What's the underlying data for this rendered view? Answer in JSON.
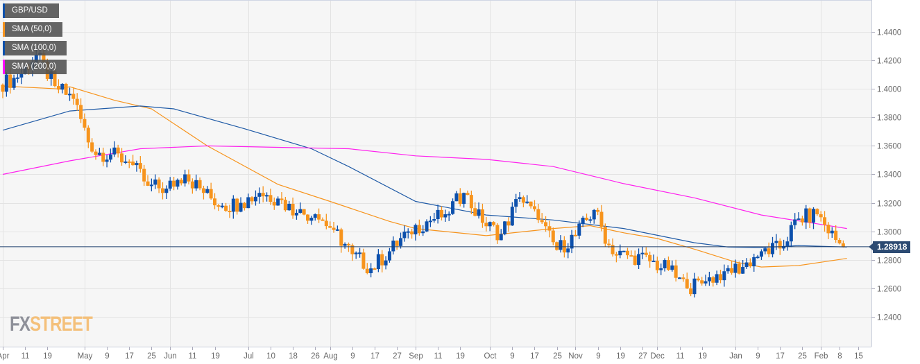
{
  "chart_data": {
    "type": "candlestick",
    "symbol": "GBP/USD",
    "legend": [
      "GBP/USD",
      "SMA (50,0)",
      "SMA (100,0)",
      "SMA (200,0)"
    ],
    "legend_placement": "top-left",
    "last_price": "1.28918",
    "ylim": [
      1.22,
      1.46
    ],
    "y_ticks": [
      "1.4400",
      "1.4200",
      "1.4000",
      "1.3800",
      "1.3600",
      "1.3400",
      "1.3200",
      "1.3000",
      "1.2800",
      "1.2600",
      "1.2400"
    ],
    "x_ticks": [
      {
        "label": "Apr",
        "day": 0
      },
      {
        "label": "11",
        "day": 6
      },
      {
        "label": "19",
        "day": 12
      },
      {
        "label": "May",
        "day": 22
      },
      {
        "label": "9",
        "day": 28
      },
      {
        "label": "17",
        "day": 34
      },
      {
        "label": "25",
        "day": 40
      },
      {
        "label": "Jun",
        "day": 45
      },
      {
        "label": "11",
        "day": 51
      },
      {
        "label": "19",
        "day": 57
      },
      {
        "label": "Jul",
        "day": 66
      },
      {
        "label": "10",
        "day": 72
      },
      {
        "label": "18",
        "day": 78
      },
      {
        "label": "26",
        "day": 84
      },
      {
        "label": "Aug",
        "day": 88
      },
      {
        "label": "9",
        "day": 94
      },
      {
        "label": "17",
        "day": 100
      },
      {
        "label": "27",
        "day": 106
      },
      {
        "label": "Sep",
        "day": 111
      },
      {
        "label": "11",
        "day": 117
      },
      {
        "label": "19",
        "day": 123
      },
      {
        "label": "Oct",
        "day": 131
      },
      {
        "label": "9",
        "day": 137
      },
      {
        "label": "17",
        "day": 143
      },
      {
        "label": "25",
        "day": 149
      },
      {
        "label": "Nov",
        "day": 154
      },
      {
        "label": "9",
        "day": 160
      },
      {
        "label": "19",
        "day": 166
      },
      {
        "label": "27",
        "day": 172
      },
      {
        "label": "Dec",
        "day": 176
      },
      {
        "label": "11",
        "day": 182
      },
      {
        "label": "19",
        "day": 188
      },
      {
        "label": "Jan",
        "day": 197
      },
      {
        "label": "9",
        "day": 203
      },
      {
        "label": "17",
        "day": 209
      },
      {
        "label": "25",
        "day": 215
      },
      {
        "label": "Feb",
        "day": 220
      },
      {
        "label": "8",
        "day": 225
      },
      {
        "label": "15",
        "day": 230
      }
    ],
    "month_gridlines": [
      0,
      22,
      45,
      66,
      88,
      111,
      131,
      154,
      176,
      197,
      220
    ],
    "open": 1.403,
    "weekly_closes": [
      1.408,
      1.424,
      1.402,
      1.393,
      1.356,
      1.354,
      1.349,
      1.332,
      1.33,
      1.34,
      1.327,
      1.318,
      1.32,
      1.327,
      1.323,
      1.313,
      1.312,
      1.301,
      1.284,
      1.274,
      1.286,
      1.3,
      1.307,
      1.312,
      1.327,
      1.306,
      1.298,
      1.324,
      1.308,
      1.287,
      1.297,
      1.315,
      1.284,
      1.283,
      1.279,
      1.273,
      1.26,
      1.265,
      1.272,
      1.275,
      1.286,
      1.288,
      1.309,
      1.312,
      1.294,
      1.28918
    ],
    "series": [
      {
        "name": "SMA (50,0)",
        "color": "#f7941d",
        "points": [
          [
            0,
            1.402
          ],
          [
            15,
            1.4
          ],
          [
            18,
            1.4015
          ],
          [
            30,
            1.392
          ],
          [
            40,
            1.386
          ],
          [
            55,
            1.36
          ],
          [
            74,
            1.333
          ],
          [
            88,
            1.321
          ],
          [
            104,
            1.307
          ],
          [
            111,
            1.302
          ],
          [
            130,
            1.297
          ],
          [
            148,
            1.302
          ],
          [
            158,
            1.304
          ],
          [
            167,
            1.299
          ],
          [
            176,
            1.295
          ],
          [
            186,
            1.2875
          ],
          [
            197,
            1.2785
          ],
          [
            204,
            1.275
          ],
          [
            214,
            1.276
          ],
          [
            227,
            1.281
          ]
        ]
      },
      {
        "name": "SMA (100,0)",
        "color": "#1f5aa6",
        "points": [
          [
            0,
            1.371
          ],
          [
            18,
            1.3845
          ],
          [
            37,
            1.388
          ],
          [
            46,
            1.386
          ],
          [
            65,
            1.372
          ],
          [
            83,
            1.358
          ],
          [
            93,
            1.3455
          ],
          [
            111,
            1.321
          ],
          [
            130,
            1.3115
          ],
          [
            148,
            1.308
          ],
          [
            167,
            1.302
          ],
          [
            186,
            1.292
          ],
          [
            195,
            1.289
          ],
          [
            204,
            1.2885
          ],
          [
            214,
            1.29
          ],
          [
            227,
            1.289
          ]
        ]
      },
      {
        "name": "SMA (200,0)",
        "color": "#ff22ee",
        "points": [
          [
            0,
            1.34
          ],
          [
            18,
            1.3495
          ],
          [
            37,
            1.358
          ],
          [
            55,
            1.36
          ],
          [
            74,
            1.359
          ],
          [
            93,
            1.358
          ],
          [
            111,
            1.353
          ],
          [
            130,
            1.3505
          ],
          [
            148,
            1.3455
          ],
          [
            167,
            1.3335
          ],
          [
            186,
            1.3235
          ],
          [
            204,
            1.3115
          ],
          [
            227,
            1.302
          ]
        ]
      }
    ],
    "colors": {
      "up": "#0d50ac",
      "down": "#f7941d",
      "grid": "#e3e3e3",
      "bg": "#f6f6f6",
      "price_line": "#1d3f6e"
    }
  },
  "legend_colors": [
    "#0d50ac",
    "#f7941d",
    "#0d50ac",
    "#ff00ff"
  ],
  "logo": {
    "part1": "FX",
    "part2": "STREET"
  }
}
